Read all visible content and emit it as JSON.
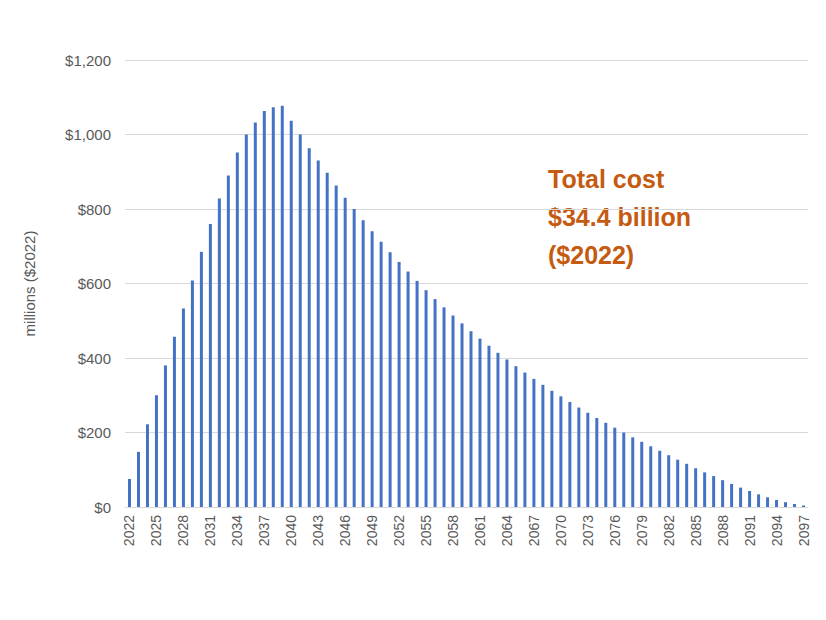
{
  "chart_data": {
    "type": "bar",
    "y_label": "millions ($2022)",
    "annotation": [
      "Total cost",
      "$34.4 billion",
      "($2022)"
    ],
    "categories": [
      "2022",
      null,
      null,
      "2025",
      null,
      null,
      "2028",
      null,
      null,
      "2031",
      null,
      null,
      "2034",
      null,
      null,
      "2037",
      null,
      null,
      "2040",
      null,
      null,
      "2043",
      null,
      null,
      "2046",
      null,
      null,
      "2049",
      null,
      null,
      "2052",
      null,
      null,
      "2055",
      null,
      null,
      "2058",
      null,
      null,
      "2061",
      null,
      null,
      "2064",
      null,
      null,
      "2067",
      null,
      null,
      "2070",
      null,
      null,
      "2073",
      null,
      null,
      "2076",
      null,
      null,
      "2079",
      null,
      null,
      "2082",
      null,
      null,
      "2085",
      null,
      null,
      "2088",
      null,
      null,
      "2091",
      null,
      null,
      "2094",
      null,
      null,
      "2097"
    ],
    "values": [
      75,
      148,
      222,
      300,
      380,
      457,
      533,
      608,
      685,
      760,
      828,
      890,
      952,
      1000,
      1032,
      1063,
      1073,
      1077,
      1037,
      1000,
      963,
      930,
      897,
      863,
      830,
      800,
      770,
      740,
      712,
      684,
      658,
      632,
      607,
      582,
      558,
      536,
      514,
      493,
      472,
      452,
      433,
      414,
      396,
      378,
      361,
      344,
      328,
      312,
      297,
      282,
      267,
      253,
      239,
      226,
      213,
      200,
      187,
      175,
      163,
      151,
      139,
      127,
      116,
      104,
      93,
      83,
      72,
      62,
      52,
      43,
      34,
      26,
      19,
      13,
      8,
      4
    ],
    "color": "#4472c4",
    "ylim": [
      0,
      1200
    ],
    "yticks": [
      {
        "value": 0,
        "label": "$0"
      },
      {
        "value": 200,
        "label": "$200"
      },
      {
        "value": 400,
        "label": "$400"
      },
      {
        "value": 600,
        "label": "$600"
      },
      {
        "value": 800,
        "label": "$800"
      },
      {
        "value": 1000,
        "label": "$1,000"
      },
      {
        "value": 1200,
        "label": "$1,200"
      }
    ],
    "grid": true
  }
}
